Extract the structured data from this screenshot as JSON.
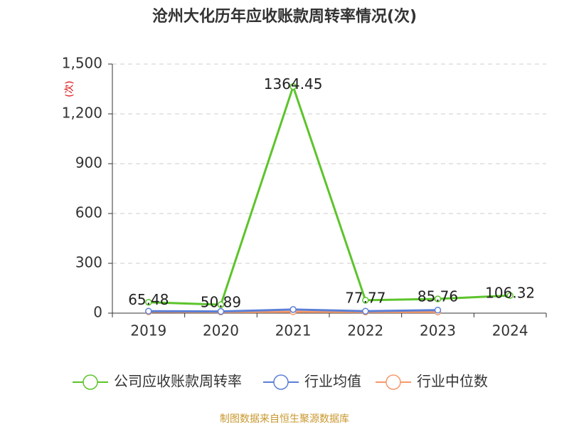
{
  "chart_data": {
    "type": "line",
    "title": "沧州大化历年应收账款周转率情况(次)",
    "y_axis_label": "(次)",
    "categories": [
      "2019",
      "2020",
      "2021",
      "2022",
      "2023",
      "2024"
    ],
    "series": [
      {
        "name": "公司应收账款周转率",
        "color": "#5cc42b",
        "values": [
          65.48,
          50.89,
          1364.45,
          77.77,
          85.76,
          106.32
        ],
        "show_labels": true
      },
      {
        "name": "行业均值",
        "color": "#5b7fd6",
        "values": [
          12,
          10,
          22,
          12,
          18,
          null
        ],
        "show_labels": false
      },
      {
        "name": "行业中位数",
        "color": "#f59a6b",
        "values": [
          8,
          7,
          8,
          7,
          7,
          null
        ],
        "show_labels": false
      }
    ],
    "ylim": [
      0,
      1500
    ],
    "yticks": [
      0,
      300,
      600,
      900,
      {
        "value": 1200,
        "label": "1,200"
      },
      {
        "value": 1500,
        "label": "1,500"
      }
    ],
    "grid": true,
    "legend": "bottom",
    "source": "制图数据来自恒生聚源数据库"
  }
}
